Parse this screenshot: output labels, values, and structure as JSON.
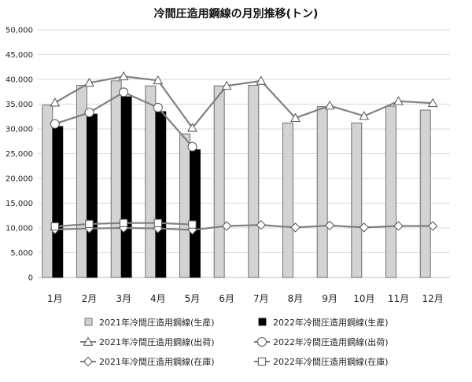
{
  "chart_data": {
    "type": "bar",
    "title": "冷間圧造用鋼線の月別推移(トン)",
    "xlabel": "",
    "ylabel": "",
    "ylim": [
      0,
      50000
    ],
    "yticks": [
      0,
      5000,
      10000,
      15000,
      20000,
      25000,
      30000,
      35000,
      40000,
      45000,
      50000
    ],
    "ytick_labels": [
      "0",
      "5,000",
      "10,000",
      "15,000",
      "20,000",
      "25,000",
      "30,000",
      "35,000",
      "40,000",
      "45,000",
      "50,000"
    ],
    "categories": [
      "1月",
      "2月",
      "3月",
      "4月",
      "5月",
      "6月",
      "7月",
      "8月",
      "9月",
      "10月",
      "11月",
      "12月"
    ],
    "grid": true,
    "legend_position": "bottom",
    "series": [
      {
        "name": "2021年冷間圧造用鋼線(生産)",
        "kind": "bar",
        "color": "#d3d3d3",
        "values": [
          34800,
          38800,
          39700,
          38700,
          29000,
          38700,
          38800,
          31200,
          34500,
          31200,
          34600,
          33800
        ]
      },
      {
        "name": "2022年冷間圧造用鋼線(生産)",
        "kind": "bar",
        "color": "#000000",
        "values": [
          30500,
          33000,
          36500,
          33500,
          25800,
          null,
          null,
          null,
          null,
          null,
          null,
          null
        ]
      },
      {
        "name": "2021年冷間圧造用鋼線(出荷)",
        "kind": "line",
        "marker": "triangle",
        "color": "#808080",
        "values": [
          35300,
          39300,
          40600,
          39800,
          30200,
          38700,
          39700,
          32200,
          34700,
          32600,
          35600,
          35200
        ]
      },
      {
        "name": "2022年冷間圧造用鋼線(出荷)",
        "kind": "line",
        "marker": "circle",
        "color": "#808080",
        "values": [
          31000,
          33300,
          37400,
          34300,
          26400,
          null,
          null,
          null,
          null,
          null,
          null,
          null
        ]
      },
      {
        "name": "2021年冷間圧造用鋼線(在庫)",
        "kind": "line",
        "marker": "diamond",
        "color": "#808080",
        "values": [
          9700,
          9900,
          10000,
          9900,
          9600,
          10400,
          10600,
          10100,
          10500,
          10100,
          10400,
          10400
        ]
      },
      {
        "name": "2022年冷間圧造用鋼線(在庫)",
        "kind": "line",
        "marker": "square",
        "color": "#808080",
        "values": [
          10300,
          10800,
          11000,
          11000,
          10700,
          null,
          null,
          null,
          null,
          null,
          null,
          null
        ]
      }
    ]
  }
}
